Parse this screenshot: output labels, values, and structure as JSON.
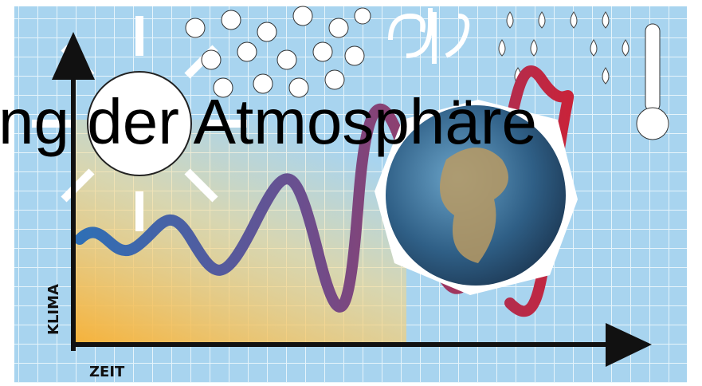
{
  "title": "ng der Atmosphäre",
  "axis_labels": {
    "y": "KLIMA",
    "x": "ZEIT"
  }
}
